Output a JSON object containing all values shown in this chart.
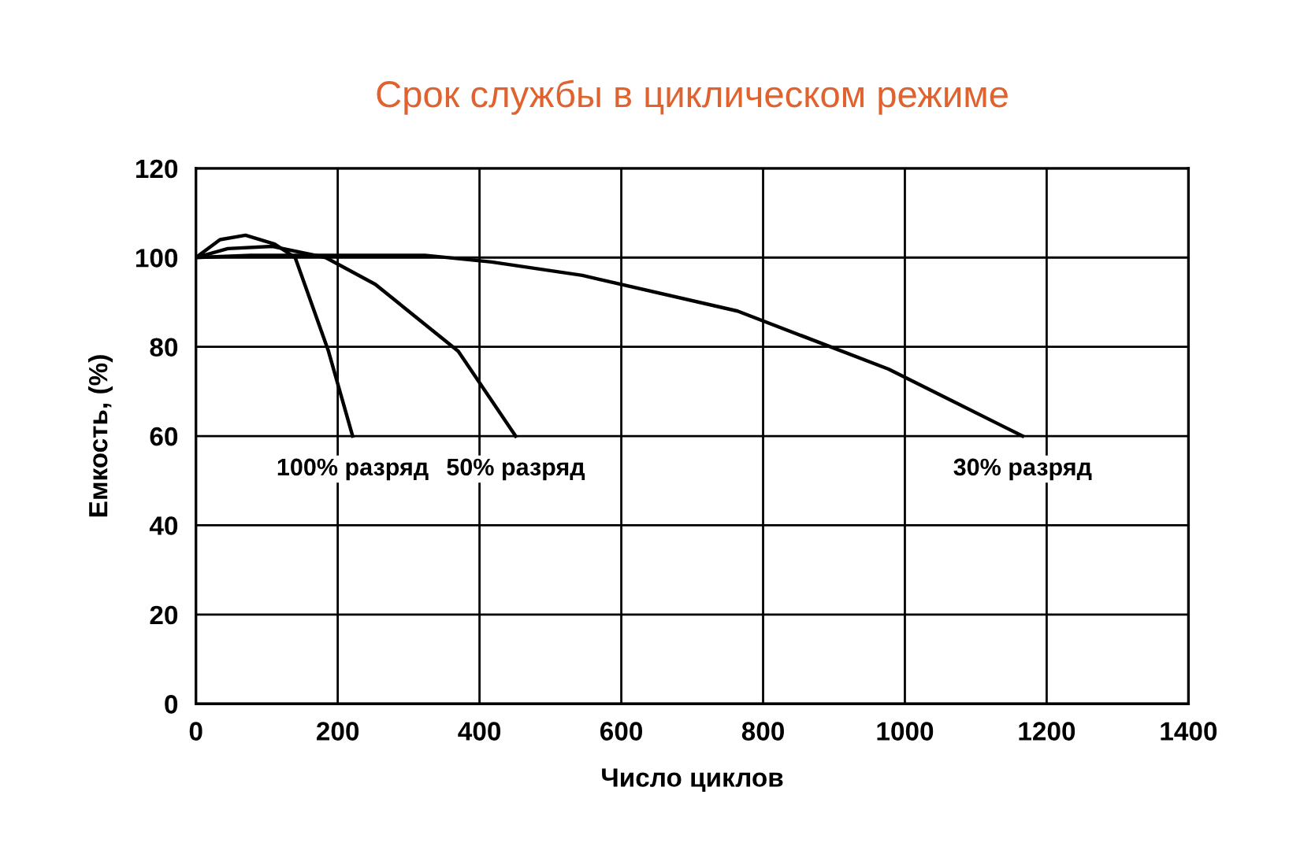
{
  "chart_data": {
    "type": "line",
    "title": "Срок службы в циклическом режиме",
    "xlabel": "Число циклов",
    "ylabel": "Емкость, (%)",
    "series": [
      {
        "name": "100% разряд",
        "color": "#000000",
        "x": [
          0,
          34,
          70,
          111,
          140,
          187,
          221
        ],
        "values": [
          100,
          104,
          105,
          103,
          100,
          79,
          60
        ]
      },
      {
        "name": "50% разряд",
        "color": "#000000",
        "x": [
          0,
          45,
          108,
          183,
          253,
          370,
          451
        ],
        "values": [
          100,
          102,
          102.5,
          100,
          94,
          79,
          60
        ]
      },
      {
        "name": "30% разряд",
        "color": "#000000",
        "x": [
          0,
          77,
          323,
          417,
          545,
          764,
          977,
          1166
        ],
        "values": [
          100,
          100.5,
          100.5,
          99,
          96,
          88,
          75,
          60
        ]
      }
    ],
    "xlim": [
      0,
      1400
    ],
    "xticks": [
      0,
      200,
      400,
      600,
      800,
      1000,
      1200,
      1400
    ],
    "ylim": [
      0,
      120
    ],
    "yticks": [
      0,
      20,
      40,
      60,
      80,
      100,
      120
    ],
    "grid": true,
    "marker": "none",
    "line_style": "solid"
  }
}
